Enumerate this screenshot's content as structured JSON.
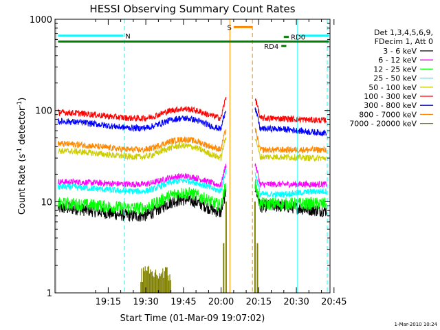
{
  "chart_data": {
    "type": "line",
    "title": "HESSI Observing Summary Count Rates",
    "xlabel": "Start Time (01-Mar-09 19:07:02)",
    "ylabel_main": "Count Rate (s",
    "ylabel_sup1": "-1",
    "ylabel_mid": " detector",
    "ylabel_sup2": "-1",
    "ylabel_end": ")",
    "y_scale": "log",
    "ylim": [
      1,
      1000
    ],
    "xlim_minutes": [
      -6.2,
      103.4
    ],
    "x_ticks": [
      {
        "label": "19:15",
        "m": 15
      },
      {
        "label": "19:30",
        "m": 30
      },
      {
        "label": "19:45",
        "m": 45
      },
      {
        "label": "20:00",
        "m": 60
      },
      {
        "label": "20:15",
        "m": 75
      },
      {
        "label": "20:30",
        "m": 90
      },
      {
        "label": "20:45",
        "m": 105
      }
    ],
    "y_ticks": [
      {
        "label": "1",
        "v": 1
      },
      {
        "label": "10",
        "v": 10
      },
      {
        "label": "100",
        "v": 100
      },
      {
        "label": "1000",
        "v": 1000
      }
    ],
    "legend_header": [
      "Det 1,3,4,5,6,9,",
      "FDecim 1, Att 0"
    ],
    "legend_position": "right",
    "series": [
      {
        "name": "3 - 6 keV",
        "color": "#000000",
        "levels": [
          8.5,
          7.0,
          10.5,
          7.5,
          9.0,
          8.0
        ]
      },
      {
        "name": "6 - 12 keV",
        "color": "#ff00ff",
        "levels": [
          16.5,
          15.5,
          19.0,
          15.0,
          15.5,
          15.5
        ]
      },
      {
        "name": "12 - 25 keV",
        "color": "#00ff00",
        "levels": [
          9.5,
          8.5,
          12.5,
          9.0,
          9.5,
          9.5
        ]
      },
      {
        "name": "25 - 50 keV",
        "color": "#00ffff",
        "levels": [
          14.5,
          13.0,
          17.0,
          13.0,
          12.0,
          13.0
        ]
      },
      {
        "name": "50 - 100 keV",
        "color": "#cccc00",
        "levels": [
          36.0,
          31.0,
          41.0,
          30.0,
          31.0,
          30.0
        ]
      },
      {
        "name": "100 - 300 keV",
        "color": "#ff0000",
        "levels": [
          95.0,
          82.0,
          104.0,
          82.0,
          82.0,
          78.0
        ]
      },
      {
        "name": "300 - 800 keV",
        "color": "#0000ff",
        "levels": [
          76.0,
          64.0,
          82.0,
          62.0,
          63.0,
          57.0
        ]
      },
      {
        "name": "800 - 7000 keV",
        "color": "#ff8800",
        "levels": [
          43.0,
          37.0,
          48.0,
          37.0,
          37.0,
          37.0
        ]
      },
      {
        "name": "7000 - 20000 keV",
        "color": "#808000",
        "levels": []
      }
    ],
    "level_minutes": [
      -5,
      28,
      45,
      62,
      80,
      102
    ],
    "data_gap_minutes": [
      62,
      73.5
    ],
    "annotations": [
      {
        "label": "N",
        "color": "#00ffff",
        "x0": -5,
        "x1": 21,
        "value": 660
      },
      {
        "label": "",
        "color": "#00ffff",
        "x0": 91,
        "x1": 103,
        "value": 660
      },
      {
        "label": "S",
        "color": "#ff8800",
        "x0": 65,
        "x1": 72.5,
        "value": 820
      },
      {
        "label": "",
        "color": "#008000",
        "x0": -5,
        "x1": 103,
        "value": 570
      },
      {
        "label": "RD0",
        "color": "#008000",
        "x0": 85,
        "x1": 87,
        "value": 640
      },
      {
        "label": "RD4",
        "color": "#008000",
        "x0": 84,
        "x1": 86,
        "value": 510
      }
    ],
    "vertical_markers": [
      {
        "m": -5.8,
        "color": "#00ffff",
        "style": "solid"
      },
      {
        "m": 21.5,
        "color": "#00ffff",
        "style": "dashed"
      },
      {
        "m": 90.5,
        "color": "#00ffff",
        "style": "solid"
      },
      {
        "m": 102.3,
        "color": "#00ffff",
        "style": "dashed"
      },
      {
        "m": 63.5,
        "color": "#ff8800",
        "style": "solid"
      },
      {
        "m": 72.5,
        "color": "#ff8800",
        "style": "dashed"
      }
    ],
    "stamp": "1-Mar-2010 10:24"
  }
}
